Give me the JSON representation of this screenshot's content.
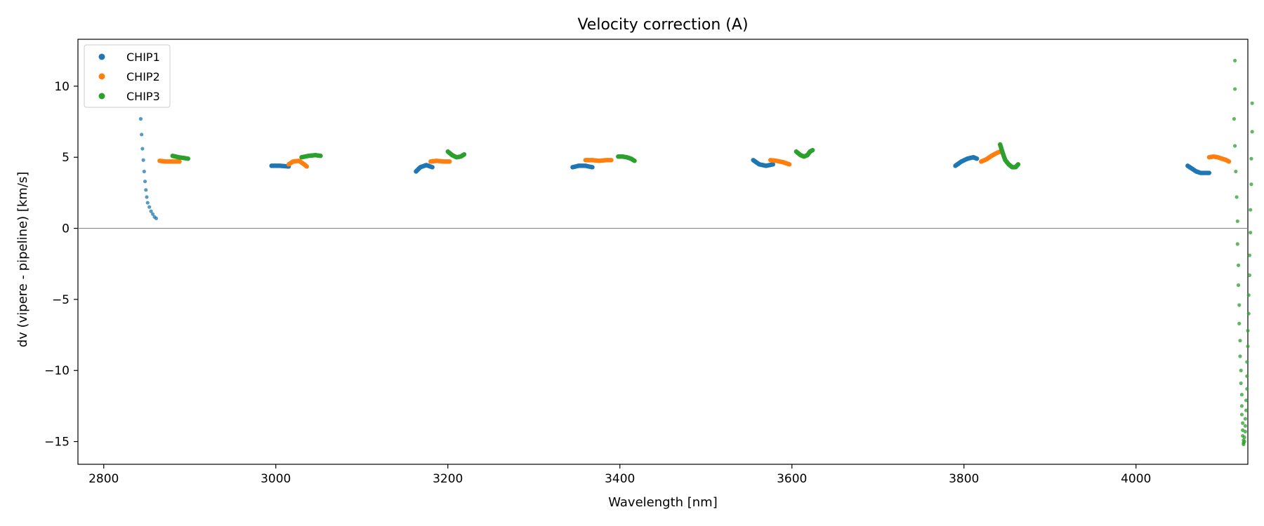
{
  "chart_data": {
    "type": "scatter",
    "title": "Velocity correction (A)",
    "xlabel": "Wavelength [nm]",
    "ylabel": "dv (vipere - pipeline) [km/s]",
    "xlim": [
      2770,
      4130
    ],
    "ylim": [
      -16.6,
      13.3
    ],
    "xticks": [
      2800,
      3000,
      3200,
      3400,
      3600,
      3800,
      4000
    ],
    "yticks": [
      -15,
      -10,
      -5,
      0,
      5,
      10
    ],
    "hline": 0,
    "legend_position": "upper-left",
    "series": [
      {
        "name": "CHIP1",
        "color": "#1f77b4",
        "segments": [
          {
            "style": "sparse",
            "points": [
              [
                2843,
                7.7
              ],
              [
                2844,
                6.6
              ],
              [
                2845,
                5.6
              ],
              [
                2846,
                4.8
              ],
              [
                2847,
                4.0
              ],
              [
                2848,
                3.3
              ],
              [
                2849,
                2.7
              ],
              [
                2850,
                2.2
              ],
              [
                2851,
                1.8
              ],
              [
                2853,
                1.5
              ],
              [
                2855,
                1.2
              ],
              [
                2857,
                1.0
              ],
              [
                2859,
                0.8
              ],
              [
                2861,
                0.7
              ]
            ]
          },
          {
            "points": [
              [
                2995,
                4.4
              ],
              [
                3005,
                4.4
              ],
              [
                3015,
                4.35
              ]
            ]
          },
          {
            "points": [
              [
                3163,
                4.0
              ],
              [
                3168,
                4.3
              ],
              [
                3175,
                4.45
              ],
              [
                3182,
                4.3
              ]
            ]
          },
          {
            "points": [
              [
                3345,
                4.3
              ],
              [
                3352,
                4.4
              ],
              [
                3360,
                4.4
              ],
              [
                3368,
                4.3
              ]
            ]
          },
          {
            "points": [
              [
                3555,
                4.8
              ],
              [
                3562,
                4.5
              ],
              [
                3570,
                4.4
              ],
              [
                3578,
                4.5
              ]
            ]
          },
          {
            "points": [
              [
                3790,
                4.4
              ],
              [
                3797,
                4.7
              ],
              [
                3804,
                4.9
              ],
              [
                3811,
                5.0
              ],
              [
                3815,
                4.9
              ]
            ]
          },
          {
            "points": [
              [
                4060,
                4.4
              ],
              [
                4065,
                4.2
              ],
              [
                4070,
                4.0
              ],
              [
                4075,
                3.9
              ],
              [
                4080,
                3.9
              ],
              [
                4085,
                3.9
              ]
            ]
          }
        ]
      },
      {
        "name": "CHIP2",
        "color": "#ff7f0e",
        "segments": [
          {
            "points": [
              [
                2865,
                4.75
              ],
              [
                2872,
                4.7
              ],
              [
                2880,
                4.7
              ],
              [
                2888,
                4.7
              ]
            ]
          },
          {
            "points": [
              [
                3015,
                4.5
              ],
              [
                3020,
                4.7
              ],
              [
                3027,
                4.75
              ],
              [
                3033,
                4.5
              ],
              [
                3036,
                4.35
              ]
            ]
          },
          {
            "points": [
              [
                3180,
                4.7
              ],
              [
                3187,
                4.75
              ],
              [
                3195,
                4.7
              ],
              [
                3202,
                4.7
              ]
            ]
          },
          {
            "points": [
              [
                3360,
                4.8
              ],
              [
                3368,
                4.8
              ],
              [
                3376,
                4.75
              ],
              [
                3384,
                4.8
              ],
              [
                3390,
                4.8
              ]
            ]
          },
          {
            "points": [
              [
                3575,
                4.8
              ],
              [
                3582,
                4.75
              ],
              [
                3590,
                4.65
              ],
              [
                3597,
                4.5
              ]
            ]
          },
          {
            "points": [
              [
                3820,
                4.7
              ],
              [
                3826,
                4.85
              ],
              [
                3832,
                5.1
              ],
              [
                3838,
                5.3
              ],
              [
                3842,
                5.4
              ]
            ]
          },
          {
            "points": [
              [
                4085,
                5.0
              ],
              [
                4090,
                5.05
              ],
              [
                4095,
                5.0
              ],
              [
                4100,
                4.9
              ],
              [
                4105,
                4.8
              ],
              [
                4108,
                4.7
              ]
            ]
          }
        ]
      },
      {
        "name": "CHIP3",
        "color": "#2ca02c",
        "segments": [
          {
            "points": [
              [
                2880,
                5.1
              ],
              [
                2887,
                5.0
              ],
              [
                2893,
                4.95
              ],
              [
                2898,
                4.9
              ]
            ]
          },
          {
            "points": [
              [
                3030,
                5.0
              ],
              [
                3038,
                5.1
              ],
              [
                3046,
                5.15
              ],
              [
                3052,
                5.1
              ]
            ]
          },
          {
            "points": [
              [
                3200,
                5.4
              ],
              [
                3205,
                5.15
              ],
              [
                3210,
                5.0
              ],
              [
                3215,
                5.05
              ],
              [
                3219,
                5.2
              ]
            ]
          },
          {
            "points": [
              [
                3398,
                5.05
              ],
              [
                3403,
                5.05
              ],
              [
                3408,
                5.0
              ],
              [
                3413,
                4.9
              ],
              [
                3417,
                4.75
              ]
            ]
          },
          {
            "points": [
              [
                3605,
                5.4
              ],
              [
                3610,
                5.15
              ],
              [
                3614,
                5.05
              ],
              [
                3618,
                5.15
              ],
              [
                3621,
                5.4
              ],
              [
                3624,
                5.5
              ]
            ]
          },
          {
            "points": [
              [
                3842,
                5.9
              ],
              [
                3845,
                5.3
              ],
              [
                3848,
                4.8
              ],
              [
                3852,
                4.5
              ],
              [
                3856,
                4.3
              ],
              [
                3860,
                4.3
              ],
              [
                3863,
                4.5
              ]
            ]
          },
          {
            "style": "sparse",
            "points": [
              [
                4115,
                11.8
              ],
              [
                4115,
                9.8
              ],
              [
                4114,
                7.7
              ],
              [
                4115,
                5.8
              ],
              [
                4116,
                4.0
              ],
              [
                4117,
                2.2
              ],
              [
                4118,
                0.5
              ],
              [
                4118,
                -1.1
              ],
              [
                4119,
                -2.6
              ],
              [
                4119,
                -4.0
              ],
              [
                4120,
                -5.4
              ],
              [
                4120,
                -6.7
              ],
              [
                4121,
                -7.9
              ],
              [
                4121,
                -9.0
              ],
              [
                4122,
                -10.0
              ],
              [
                4122,
                -10.9
              ],
              [
                4123,
                -11.7
              ],
              [
                4123,
                -12.5
              ],
              [
                4123,
                -13.1
              ],
              [
                4124,
                -13.7
              ],
              [
                4124,
                -14.2
              ],
              [
                4124,
                -14.6
              ],
              [
                4125,
                -14.9
              ],
              [
                4125,
                -15.1
              ],
              [
                4125,
                -15.2
              ],
              [
                4126,
                -15.0
              ],
              [
                4126,
                -14.7
              ],
              [
                4127,
                -14.3
              ],
              [
                4127,
                -13.9
              ],
              [
                4127,
                -13.4
              ],
              [
                4128,
                -12.8
              ],
              [
                4128,
                -12.1
              ],
              [
                4129,
                -11.3
              ],
              [
                4129,
                -10.4
              ],
              [
                4129,
                -9.4
              ],
              [
                4130,
                -8.3
              ],
              [
                4130,
                -7.2
              ],
              [
                4131,
                -6.0
              ],
              [
                4131,
                -4.7
              ],
              [
                4132,
                -3.3
              ],
              [
                4132,
                -1.9
              ],
              [
                4133,
                -0.3
              ],
              [
                4133,
                1.3
              ],
              [
                4134,
                3.1
              ],
              [
                4134,
                4.9
              ],
              [
                4135,
                6.8
              ],
              [
                4135,
                8.8
              ]
            ]
          }
        ]
      }
    ]
  }
}
